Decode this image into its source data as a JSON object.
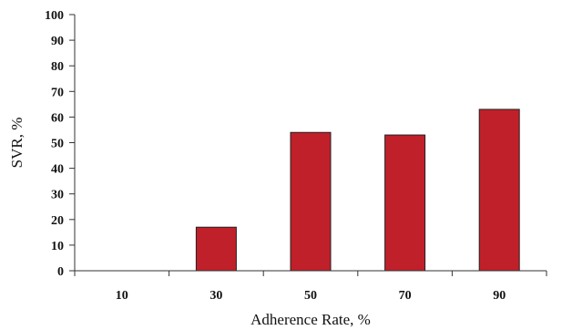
{
  "chart_data": {
    "type": "bar",
    "title": "",
    "xlabel": "Adherence Rate, %",
    "ylabel": "SVR, %",
    "categories": [
      "10",
      "30",
      "50",
      "70",
      "90"
    ],
    "values": [
      0,
      17,
      54,
      53,
      63
    ],
    "ylim": [
      0,
      100
    ],
    "y_ticks": [
      "0",
      "10",
      "20",
      "30",
      "40",
      "50",
      "60",
      "70",
      "80",
      "90",
      "100"
    ],
    "grid": false,
    "legend": "none",
    "bar_color": "#C0202A",
    "bar_outline": "#222222"
  }
}
